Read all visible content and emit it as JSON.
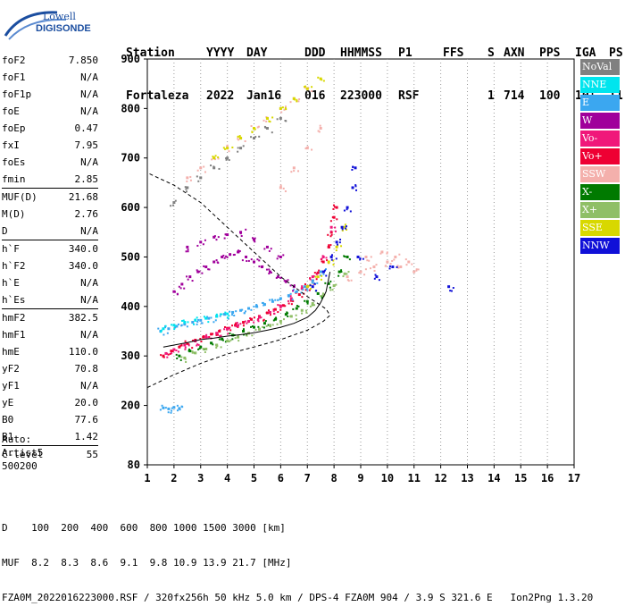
{
  "logo": {
    "line1": "Lowell",
    "line2": "DIGISONDE"
  },
  "header": {
    "row1": [
      "Station",
      "YYYY",
      "DAY",
      "DDD",
      "HHMMSS",
      "P1",
      "FFS",
      "S",
      "AXN",
      "PPS",
      "IGA",
      "PS"
    ],
    "row2": [
      "Fortaleza",
      "2022",
      "Jan16",
      "016",
      "223000",
      "RSF",
      "",
      "1",
      "714",
      "100",
      "10+",
      "11"
    ]
  },
  "params": {
    "group1": [
      {
        "label": "foF2",
        "value": "7.850"
      },
      {
        "label": "foF1",
        "value": "N/A"
      },
      {
        "label": "foF1p",
        "value": "N/A"
      },
      {
        "label": "foE",
        "value": "N/A"
      },
      {
        "label": "foEp",
        "value": "0.47"
      },
      {
        "label": "fxI",
        "value": "7.95"
      },
      {
        "label": "foEs",
        "value": "N/A"
      },
      {
        "label": "fmin",
        "value": "2.85"
      }
    ],
    "group2": [
      {
        "label": "MUF(D)",
        "value": "21.68"
      },
      {
        "label": "M(D)",
        "value": "2.76"
      },
      {
        "label": "D",
        "value": "N/A"
      }
    ],
    "group3": [
      {
        "label": "h`F",
        "value": "340.0"
      },
      {
        "label": "h`F2",
        "value": "340.0"
      },
      {
        "label": "h`E",
        "value": "N/A"
      },
      {
        "label": "h`Es",
        "value": "N/A"
      }
    ],
    "group4": [
      {
        "label": "hmF2",
        "value": "382.5"
      },
      {
        "label": "hmF1",
        "value": "N/A"
      },
      {
        "label": "hmE",
        "value": "110.0"
      },
      {
        "label": "yF2",
        "value": "70.8"
      },
      {
        "label": "yF1",
        "value": "N/A"
      },
      {
        "label": "yE",
        "value": "20.0"
      },
      {
        "label": "B0",
        "value": "77.6"
      },
      {
        "label": "B1",
        "value": "1.42"
      }
    ],
    "group5": [
      {
        "label": "C-level",
        "value": "55"
      }
    ]
  },
  "auto": {
    "line1": "Auto:",
    "line2": "Artist5",
    "line3": "500200"
  },
  "legend": [
    {
      "label": "NoVal",
      "color": "#808080"
    },
    {
      "label": "NNE",
      "color": "#00e5ee"
    },
    {
      "label": "E",
      "color": "#3ba7f0"
    },
    {
      "label": "W",
      "color": "#a0009b"
    },
    {
      "label": "Vo-",
      "color": "#f0187a"
    },
    {
      "label": "Vo+",
      "color": "#ee0033"
    },
    {
      "label": "SSW",
      "color": "#f4b0ac"
    },
    {
      "label": "X-",
      "color": "#007a00"
    },
    {
      "label": "X+",
      "color": "#8fbf66"
    },
    {
      "label": "SSE",
      "color": "#d8d800"
    },
    {
      "label": "NNW",
      "color": "#1010d8"
    }
  ],
  "footer": {
    "line1": "D    100  200  400  600  800 1000 1500 3000 [km]",
    "line2": "MUF  8.2  8.3  8.6  9.1  9.8 10.9 13.9 21.7 [MHz]",
    "line3": "FZA0M_2022016223000.RSF / 320fx256h 50 kHz 5.0 km / DPS-4 FZA0M 904 / 3.9 S 321.6 E   Ion2Png 1.3.20"
  },
  "chart_data": {
    "type": "scatter",
    "xlim": [
      1,
      17
    ],
    "ylim": [
      80,
      900
    ],
    "x_ticks": [
      1,
      2,
      3,
      4,
      5,
      6,
      7,
      8,
      9,
      10,
      11,
      12,
      13,
      14,
      15,
      16,
      17
    ],
    "y_ticks": [
      80,
      200,
      300,
      400,
      500,
      600,
      700,
      800,
      900
    ],
    "grid": "dotted-verticals",
    "legend_position": "right",
    "series": [
      {
        "name": "Vo+",
        "color": "#ee0033",
        "x": [
          1.6,
          1.9,
          2.2,
          2.5,
          2.8,
          3.1,
          3.4,
          3.7,
          4.0,
          4.3,
          4.6,
          4.9,
          5.2,
          5.5,
          5.8,
          6.1,
          6.4,
          6.7,
          7.0,
          7.2,
          7.4,
          7.6,
          7.8,
          7.9,
          8.0,
          8.1
        ],
        "y": [
          300,
          310,
          318,
          325,
          332,
          338,
          344,
          350,
          356,
          362,
          368,
          374,
          380,
          387,
          394,
          402,
          412,
          424,
          440,
          452,
          468,
          490,
          520,
          550,
          580,
          600
        ]
      },
      {
        "name": "Vo-",
        "color": "#f0187a",
        "x": [
          1.7,
          2.0,
          2.4,
          2.8,
          3.2,
          3.6,
          4.0,
          4.4,
          4.8,
          5.2,
          5.6,
          6.0,
          6.4,
          6.8,
          7.2,
          7.6,
          7.9
        ],
        "y": [
          305,
          313,
          322,
          330,
          338,
          346,
          354,
          362,
          370,
          378,
          388,
          400,
          416,
          436,
          460,
          500,
          560
        ]
      },
      {
        "name": "X-",
        "color": "#007a00",
        "x": [
          2.2,
          2.6,
          3.0,
          3.4,
          3.8,
          4.2,
          4.6,
          5.0,
          5.4,
          5.8,
          6.2,
          6.6,
          7.0,
          7.4,
          7.8,
          8.2,
          8.5
        ],
        "y": [
          300,
          310,
          318,
          326,
          334,
          342,
          350,
          358,
          366,
          374,
          384,
          396,
          410,
          426,
          446,
          470,
          500
        ]
      },
      {
        "name": "X+",
        "color": "#8fbf66",
        "x": [
          2.4,
          2.8,
          3.2,
          3.6,
          4.0,
          4.4,
          4.8,
          5.2,
          5.6,
          6.0,
          6.4,
          6.8,
          7.2,
          7.6,
          8.0,
          8.4
        ],
        "y": [
          296,
          306,
          314,
          322,
          330,
          338,
          346,
          354,
          362,
          370,
          380,
          392,
          406,
          422,
          442,
          466
        ]
      },
      {
        "name": "E",
        "color": "#3ba7f0",
        "x": [
          1.5,
          1.8,
          2.1,
          2.4,
          2.7,
          3.0,
          3.3,
          3.6,
          3.9,
          4.2,
          4.5,
          4.8,
          5.1,
          5.4,
          5.7,
          6.0,
          6.3,
          6.6,
          6.9,
          7.2,
          7.5,
          1.6,
          1.8,
          2.0,
          2.2
        ],
        "y": [
          350,
          355,
          360,
          364,
          368,
          372,
          376,
          380,
          384,
          388,
          392,
          396,
          400,
          404,
          410,
          416,
          422,
          430,
          440,
          452,
          470,
          195,
          193,
          196,
          194
        ]
      },
      {
        "name": "NNE",
        "color": "#00e5ee",
        "x": [
          1.6,
          2.0,
          2.4,
          2.8,
          3.2,
          3.6,
          4.0
        ],
        "y": [
          355,
          362,
          368,
          372,
          376,
          380,
          385
        ]
      },
      {
        "name": "W",
        "color": "#a0009b",
        "x": [
          2.0,
          2.3,
          2.6,
          2.9,
          3.2,
          3.5,
          3.8,
          4.1,
          4.4,
          4.7,
          5.0,
          5.3,
          5.6,
          5.9,
          6.2,
          6.5,
          2.5,
          3.0,
          3.5,
          4.0,
          4.5,
          5.0,
          5.5,
          6.0
        ],
        "y": [
          430,
          445,
          460,
          470,
          480,
          490,
          500,
          505,
          510,
          500,
          490,
          480,
          470,
          460,
          450,
          440,
          520,
          530,
          540,
          545,
          550,
          535,
          520,
          500
        ]
      },
      {
        "name": "SSW",
        "color": "#f4b0ac",
        "x": [
          6.0,
          6.5,
          7.0,
          7.5,
          8.5,
          9.0,
          9.5,
          10.0,
          10.5,
          11.0,
          9.2,
          9.8,
          10.3,
          10.8,
          2.5,
          3.0,
          3.5,
          4.0,
          4.5,
          5.0,
          5.5,
          6.0,
          6.5,
          7.0
        ],
        "y": [
          640,
          680,
          720,
          760,
          460,
          470,
          480,
          490,
          480,
          470,
          500,
          510,
          500,
          490,
          660,
          680,
          700,
          720,
          740,
          760,
          780,
          800,
          820,
          840
        ]
      },
      {
        "name": "SSE",
        "color": "#d8d800",
        "x": [
          7.0,
          7.4,
          7.8,
          8.1,
          8.4,
          3.5,
          4.0,
          4.5,
          5.0,
          5.5,
          6.0,
          6.5,
          7.0,
          7.5
        ],
        "y": [
          440,
          460,
          490,
          520,
          560,
          700,
          720,
          740,
          760,
          780,
          800,
          820,
          840,
          860
        ]
      },
      {
        "name": "NNW",
        "color": "#1010d8",
        "x": [
          7.2,
          7.6,
          7.9,
          8.1,
          8.3,
          8.5,
          8.7,
          8.8,
          8.9,
          12.3,
          9.6,
          10.2
        ],
        "y": [
          440,
          470,
          500,
          530,
          560,
          600,
          640,
          680,
          500,
          440,
          460,
          480
        ]
      },
      {
        "name": "NoVal",
        "color": "#808080",
        "x": [
          2.0,
          2.5,
          3.0,
          3.5,
          4.0,
          4.5,
          5.0,
          5.5,
          6.0
        ],
        "y": [
          610,
          640,
          660,
          680,
          700,
          720,
          740,
          760,
          780
        ]
      }
    ],
    "profile_curve": {
      "x": [
        1.0,
        2.0,
        3.0,
        4.0,
        5.0,
        6.0,
        7.0,
        7.6,
        7.85,
        7.7,
        7.0,
        6.0,
        5.0,
        4.0,
        3.0,
        2.0,
        1.0
      ],
      "y": [
        236,
        262,
        285,
        304,
        318,
        333,
        352,
        370,
        382,
        395,
        420,
        460,
        510,
        560,
        610,
        645,
        670
      ]
    },
    "virtual_height_curve": {
      "x": [
        1.6,
        2.0,
        2.5,
        3.0,
        3.5,
        4.0,
        4.5,
        5.0,
        5.5,
        6.0,
        6.5,
        7.0,
        7.3,
        7.5,
        7.7,
        7.85
      ],
      "y": [
        318,
        322,
        327,
        333,
        336,
        340,
        343,
        347,
        352,
        358,
        366,
        378,
        392,
        408,
        430,
        470
      ]
    }
  }
}
